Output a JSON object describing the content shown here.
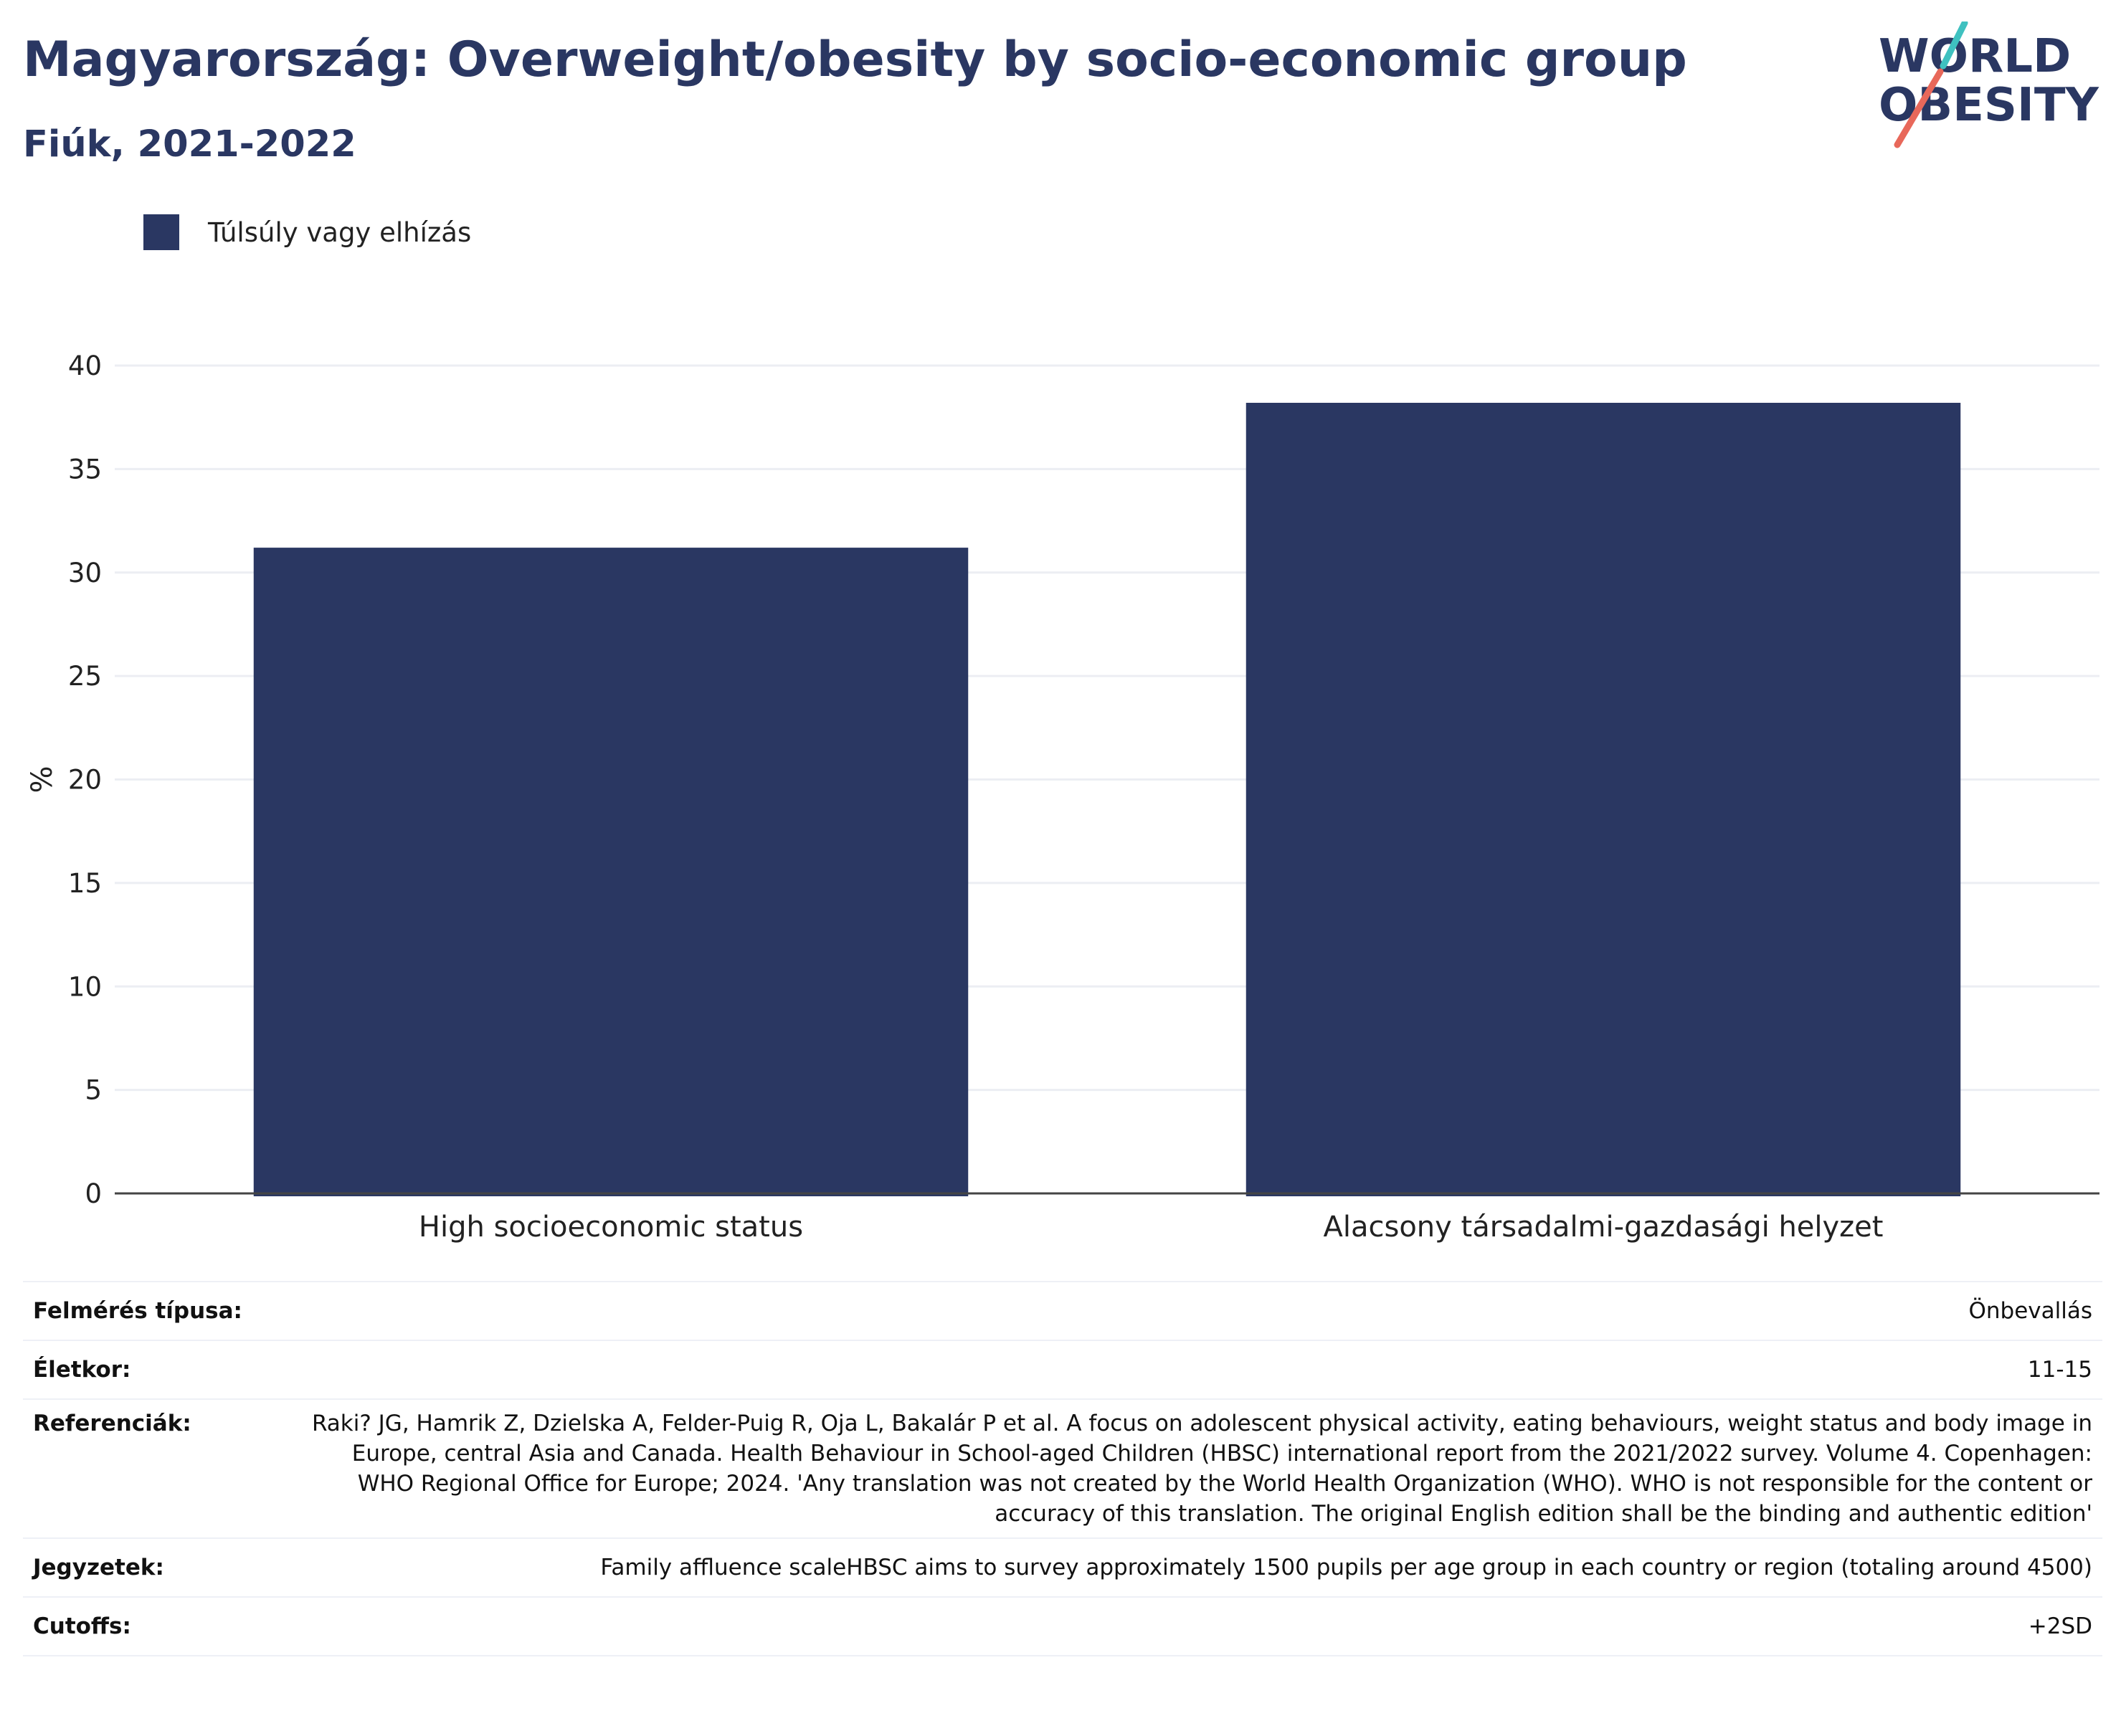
{
  "chart_data": {
    "type": "bar",
    "title": "Magyarország: Overweight/obesity by socio-economic group",
    "subtitle": "Fiúk, 2021-2022",
    "categories": [
      "High socioeconomic status",
      "Alacsony társadalmi-gazdasági helyzet"
    ],
    "series": [
      {
        "name": "Túlsúly vagy elhízás",
        "values": [
          31.2,
          38.2
        ]
      }
    ],
    "ylabel": "%",
    "xlabel": "",
    "ylim": [
      0,
      40
    ],
    "yticks": [
      0,
      5,
      10,
      15,
      20,
      25,
      30,
      35,
      40
    ],
    "grid": true,
    "legend_position": "top-left",
    "bar_color": "#2a3762"
  },
  "logo": {
    "line1": "WORLD",
    "line2": "OBESITY"
  },
  "colors": {
    "navy": "#2a3762",
    "teal": "#3fc1c0",
    "coral": "#e8685a"
  },
  "meta": [
    {
      "label": "Felmérés típusa:",
      "value": "Önbevallás"
    },
    {
      "label": "Életkor:",
      "value": "11-15"
    },
    {
      "label": "Referenciák:",
      "value": "Raki? JG, Hamrik Z, Dzielska A, Felder-Puig R, Oja L, Bakalár P et al. A focus on adolescent physical activity, eating behaviours, weight status and body image in Europe, central Asia and Canada. Health Behaviour in School-aged Children (HBSC) international report from the 2021/2022 survey. Volume 4. Copenhagen: WHO Regional Office for Europe; 2024. 'Any translation was not created by the World Health Organization (WHO). WHO is not responsible for the content or accuracy of this translation. The original English edition shall be the binding and authentic edition'"
    },
    {
      "label": "Jegyzetek:",
      "value": "Family affluence scaleHBSC aims to survey approximately 1500 pupils per age group in each country or region (totaling around 4500)"
    },
    {
      "label": "Cutoffs:",
      "value": "+2SD"
    }
  ]
}
